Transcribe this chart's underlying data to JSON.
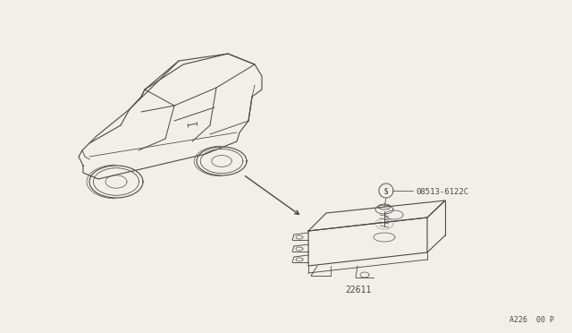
{
  "bg_color": "#f0efea",
  "line_color": "#4a4a4a",
  "part_label_ecu": "22611",
  "part_label_screw": "08513-6122C",
  "page_ref": "A226  00 P"
}
